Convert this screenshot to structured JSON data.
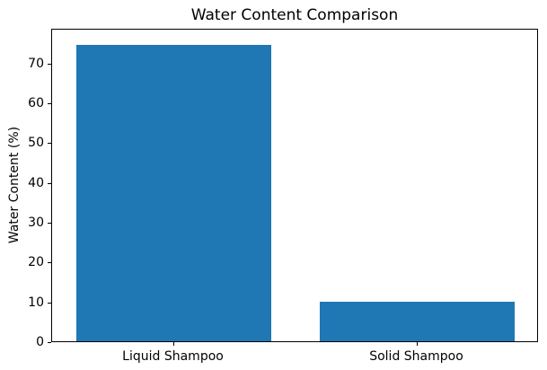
{
  "chart_data": {
    "type": "bar",
    "title": "Water Content Comparison",
    "ylabel": "Water Content (%)",
    "xlabel": "",
    "categories": [
      "Liquid Shampoo",
      "Solid Shampoo"
    ],
    "values": [
      75,
      10
    ],
    "yticks": [
      0,
      10,
      20,
      30,
      40,
      50,
      60,
      70
    ],
    "ylim": [
      0,
      78.75
    ],
    "bar_color": "#1f77b4",
    "spine_color": "#000000",
    "text_color": "#000000",
    "background_color": "#ffffff",
    "grid": false,
    "legend_position": "none",
    "bar_width_fraction": 0.4,
    "bar_center_fractions": [
      0.25,
      0.75
    ]
  }
}
